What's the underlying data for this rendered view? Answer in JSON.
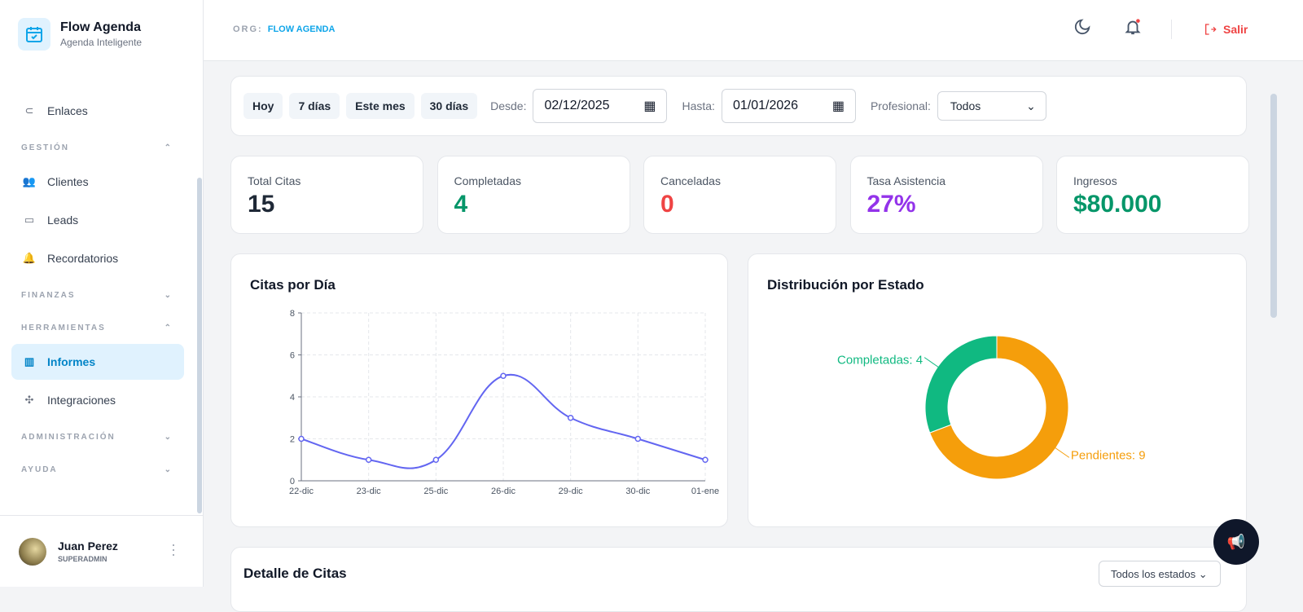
{
  "brand": {
    "title": "Flow Agenda",
    "subtitle": "Agenda Inteligente"
  },
  "sidebar": {
    "top_item": {
      "label": "Enlaces",
      "icon": "link-icon"
    },
    "sections": [
      {
        "label": "GESTIÓN",
        "expanded": true,
        "items": [
          {
            "label": "Clientes",
            "icon": "users-icon"
          },
          {
            "label": "Leads",
            "icon": "id-card-icon"
          },
          {
            "label": "Recordatorios",
            "icon": "bell-ring-icon"
          }
        ]
      },
      {
        "label": "FINANZAS",
        "expanded": false,
        "items": []
      },
      {
        "label": "HERRAMIENTAS",
        "expanded": true,
        "items": [
          {
            "label": "Informes",
            "icon": "chart-icon",
            "active": true
          },
          {
            "label": "Integraciones",
            "icon": "network-icon"
          }
        ]
      },
      {
        "label": "ADMINISTRACIÓN",
        "expanded": false,
        "items": []
      },
      {
        "label": "AYUDA",
        "expanded": false,
        "items": []
      }
    ]
  },
  "user": {
    "name": "Juan Perez",
    "role": "SUPERADMIN"
  },
  "header": {
    "org_label": "ORG:",
    "org_name": "FLOW AGENDA",
    "logout": "Salir"
  },
  "filters": {
    "quick": [
      "Hoy",
      "7 días",
      "Este mes",
      "30 días"
    ],
    "from_label": "Desde:",
    "from": "02/12/2025",
    "to_label": "Hasta:",
    "to": "01/01/2026",
    "prof_label": "Profesional:",
    "prof": "Todos"
  },
  "kpis": [
    {
      "label": "Total Citas",
      "value": "15",
      "color": "#1f2937"
    },
    {
      "label": "Completadas",
      "value": "4",
      "color": "#059669"
    },
    {
      "label": "Canceladas",
      "value": "0",
      "color": "#ef4444"
    },
    {
      "label": "Tasa Asistencia",
      "value": "27%",
      "color": "#9333ea"
    },
    {
      "label": "Ingresos",
      "value": "$80.000",
      "color": "#059669"
    }
  ],
  "chart_data": [
    {
      "type": "line",
      "title": "Citas por Día",
      "categories": [
        "22-dic",
        "23-dic",
        "25-dic",
        "26-dic",
        "29-dic",
        "30-dic",
        "01-ene"
      ],
      "values": [
        2,
        1,
        1,
        5,
        3,
        2,
        1
      ],
      "ylim": [
        0,
        8
      ],
      "yticks": [
        0,
        2,
        4,
        6,
        8
      ],
      "grid": true,
      "color": "#6366f1"
    },
    {
      "type": "pie",
      "title": "Distribución por Estado",
      "donut": true,
      "slices": [
        {
          "label": "Completadas",
          "value": 4,
          "color": "#10b981",
          "text": "Completadas: 4"
        },
        {
          "label": "Pendientes",
          "value": 9,
          "color": "#f59e0b",
          "text": "Pendientes: 9"
        }
      ]
    }
  ],
  "detail": {
    "title": "Detalle de Citas",
    "status_filter": "Todos los estados"
  }
}
